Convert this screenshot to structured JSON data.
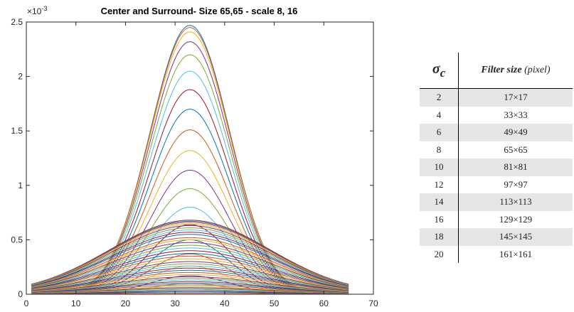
{
  "chart_data": [
    {
      "type": "line",
      "title": "Center and Surround- Size 65,65 - scale 8, 16",
      "xlabel": "",
      "ylabel": "",
      "y_exponent_label": "×10",
      "y_exponent_power": "-3",
      "xlim": [
        0,
        70
      ],
      "ylim": [
        0,
        2.5
      ],
      "x_ticks": [
        "0",
        "10",
        "20",
        "30",
        "40",
        "50",
        "60",
        "70"
      ],
      "y_ticks": [
        "0",
        "0.5",
        "1",
        "1.5",
        "2",
        "2.5"
      ],
      "x_range": [
        1,
        65
      ],
      "center_x": 33,
      "series_groups": [
        {
          "name": "",
          "sigma": 8,
          "peak_values": [
            2.47,
            2.45,
            2.41,
            2.32,
            2.2,
            2.05,
            1.88,
            1.7,
            1.51,
            1.32,
            1.14,
            0.97,
            0.8,
            0.64,
            0.5,
            0.37,
            0.26,
            0.17,
            0.1,
            0.05
          ]
        },
        {
          "name": "",
          "sigma": 16,
          "peak_values": [
            0.68,
            0.67,
            0.66,
            0.645,
            0.63,
            0.61,
            0.59,
            0.57,
            0.55,
            0.52,
            0.5,
            0.475,
            0.45,
            0.425,
            0.4,
            0.375,
            0.35,
            0.325,
            0.3,
            0.28,
            0.26,
            0.24,
            0.22,
            0.2,
            0.18,
            0.16,
            0.145,
            0.13,
            0.115,
            0.1,
            0.085,
            0.07,
            0.06,
            0.05,
            0.04,
            0.03,
            0.02,
            0.01
          ]
        }
      ],
      "colors": [
        "#0072BD",
        "#D95319",
        "#EDB120",
        "#7E2F8E",
        "#77AC30",
        "#4DBEEE",
        "#A2142F"
      ],
      "grid": false,
      "legend": "none"
    },
    {
      "type": "table",
      "columns": [
        "σc",
        "Filter size (pixel)"
      ],
      "rows": [
        [
          "2",
          "17×17"
        ],
        [
          "4",
          "33×33"
        ],
        [
          "6",
          "49×49"
        ],
        [
          "8",
          "65×65"
        ],
        [
          "10",
          "81×81"
        ],
        [
          "12",
          "97×97"
        ],
        [
          "14",
          "113×113"
        ],
        [
          "16",
          "129×129"
        ],
        [
          "18",
          "145×145"
        ],
        [
          "20",
          "161×161"
        ]
      ]
    }
  ],
  "table": {
    "sigma_symbol": "σ",
    "sigma_subscript": "c",
    "size_header_bold": "Filter size",
    "size_header_rest": " (pixel)",
    "shade_color": "#e6e6e6"
  }
}
